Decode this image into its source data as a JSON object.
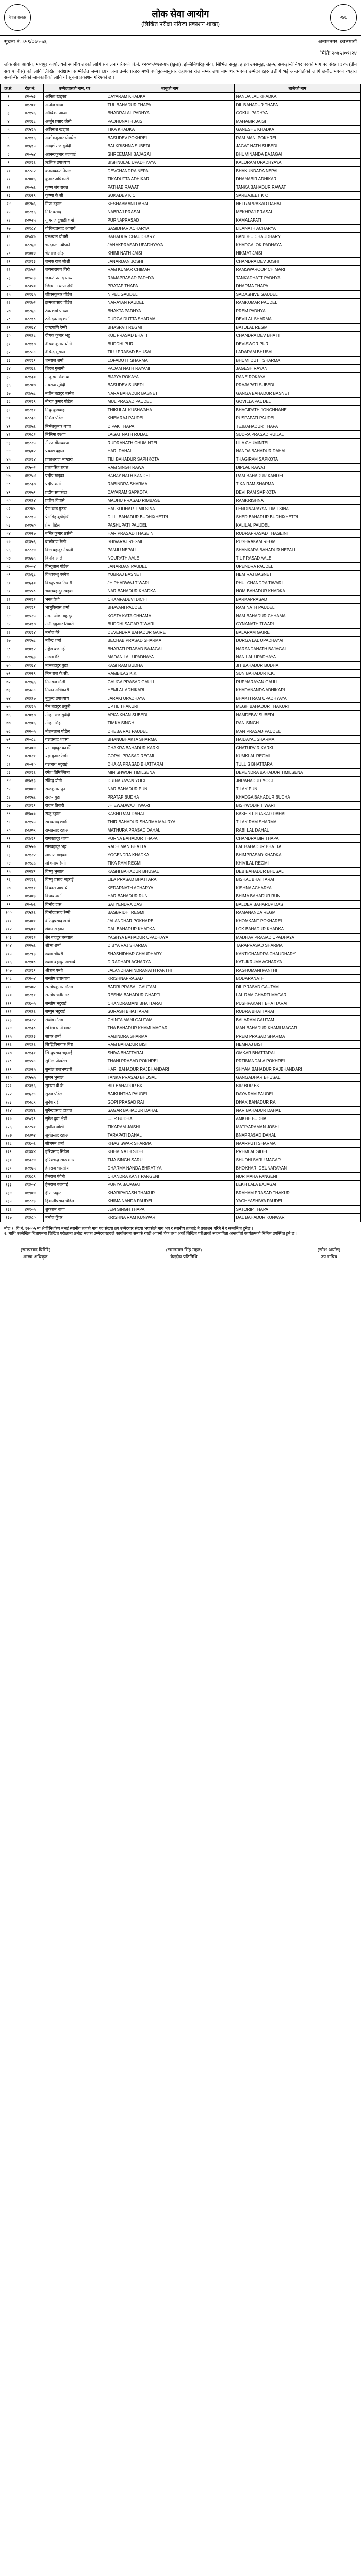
{
  "header": {
    "title": "लोक सेवा आयोग",
    "subtitle": "(लिखित परीक्षा नतिजा प्रकाशन शाखा)",
    "location": "अनामनगर, काठमाडौं",
    "emblem_left": "नेपाल सरकार",
    "emblem_right": "PSC"
  },
  "info": {
    "suchana_no_label": "सूचना नं.",
    "suchana_no": "८५९/०७५-७६",
    "date_label": "मितिः",
    "date": "२०७५।०९।२४"
  },
  "notice_text": "लोक सेवा आयोग, मध्यपुर कार्यालयले स्थानीय तहको लागि संचालन गरिएको वि.नं. १२००५/०७४-७५ (खुला), इन्जिनियरिङ्ग सेवा, सिभिल समूह, हाइवे उपसमूह, तह-५, सब-इन्जिनियर पदको माग पद संख्या ३२५ (तीन सय पच्चीस) को लागि लिखित परीक्षामा सम्मिलित जम्मा ६७९ जना उम्मेदवारहरु मध्ये वर्णानुक्रमानुसार देहायका रोल नम्बर तथा नाम थर भएका उम्मेदवारहरु उत्तीर्ण भई अन्तर्वार्ताको लागि छनौट भएको व्यहोरा सम्बन्धित सबैको जानकारीको लागि यो सूचना प्रकाशन गरिएको छ ।",
  "columns": [
    "क्र.सं.",
    "रोल नं.",
    "उम्मेदवारको नाम, थर",
    "बाबुको नाम",
    "बाजेको नाम"
  ],
  "rows": [
    [
      "१",
      "४२०५३",
      "अनिता खड्का",
      "DAYARAM KHADKA",
      "NANDA LAL KHADKA"
    ],
    [
      "२",
      "४१२०१",
      "अनोज थापा",
      "TUL BAHADUR THAPA",
      "DIL BAHADUR THAPA"
    ],
    [
      "३",
      "४२१५६",
      "अम्बिका पाध्या",
      "BHADRALAL PADHYA",
      "GOKUL PADHYA"
    ],
    [
      "४",
      "४२१६८",
      "अर्जुन प्रसाद जैसी",
      "PADHUNATH JAISI",
      "MAHABIR JAISI"
    ],
    [
      "५",
      "४१५९५",
      "अविनाश खड्का",
      "TIKA KHADKA",
      "GANESHE KHADKA"
    ],
    [
      "६",
      "४२११६",
      "अशोककुमार पोखरेल",
      "BASUDEV POKHREL",
      "RAM MANI POKHREL"
    ],
    [
      "७",
      "४१६१५",
      "आदर्श राज सुवेदी",
      "BALKRISHNA SUBEDI",
      "JAGAT NATH SUBEDI"
    ],
    [
      "८",
      "४२०५४",
      "आनन्दकुमार बजगाई",
      "SHREEMANI BAJAGAI",
      "BHUMINANDA BAJAGAI"
    ],
    [
      "९",
      "४२३१६",
      "ऋतिक उपाध्याय",
      "BISHNULAL UPADHYAYA",
      "KALURAM UPADHYAYA"
    ],
    [
      "१०",
      "४२२८२",
      "कमलकान्त नेपाल",
      "DEVCHANDRA NEPAL",
      "BHAKUNDADA NEPAL"
    ],
    [
      "११",
      "४२४४६",
      "कुमार अधिकारी",
      "TIKADUTTA ADHIKARI",
      "DHANABIR ADHIKARI"
    ],
    [
      "१२",
      "४२०५६",
      "कृष्ण जंग रावत",
      "PATHAB RAWAT",
      "TANKA BAHADUR RAWAT"
    ],
    [
      "१३",
      "४१६२९",
      "कृष्णा के सी",
      "SUKADEV K C",
      "SARBAJEET K C"
    ],
    [
      "१४",
      "४१२७६",
      "गिता दहाल",
      "KESHABMANI DAHAL",
      "NETRAPRASAD DAHAL"
    ],
    [
      "१५",
      "४१२१६",
      "गिरि प्रसाद",
      "NABRAJ PRASAI",
      "MEKHRAJ PRASAI"
    ],
    [
      "१६",
      "४२०२५",
      "गुणराज दुवाडी शर्मा",
      "PURNAPRASAD",
      "KAMALAPATI"
    ],
    [
      "१७",
      "४२१८४",
      "गोविन्दप्रसाद आचार्य",
      "SASIDHAR ACHARYA",
      "LILANATH ACHARYA"
    ],
    [
      "१८",
      "४२०४५",
      "घनश्याम चौधरी",
      "BAHADUR CHAUDHARY",
      "BANDHU CHAUDHARY"
    ],
    [
      "१९",
      "४२२६४",
      "चन्द्रकला न्यौपाने",
      "JANAKPRASAD UPADHYAYA",
      "KHADGALOK PADHAYA"
    ],
    [
      "२०",
      "४१७४४",
      "चेतराज ओझा",
      "KHIMI NATH JAISI",
      "HIKMAT JAISI"
    ],
    [
      "२१",
      "४१३१३",
      "जनक राज जोशी",
      "JANARDAN JOSHI",
      "CHANDRA DEV JOSHI"
    ],
    [
      "२२",
      "४१७५२",
      "जयनारायण गिरी",
      "RAM KUMAR CHIMARI",
      "RAMSWAROOP CHIMARI"
    ],
    [
      "२३",
      "४१५८३",
      "जयन्तीप्रसाद पाध्या",
      "RAMAPRASAD PADHYA",
      "TANKADHATT PADHYA"
    ],
    [
      "२४",
      "४२३५०",
      "जितमान थापा क्षेत्री",
      "PRATAP THAPA",
      "DHARMA THAPA"
    ],
    [
      "२५",
      "४२१६५",
      "जीवनकुमार गौडेल",
      "NIPEL GAUDEL",
      "SADASHIVE GAUDEL"
    ],
    [
      "२६",
      "४२१७२",
      "झमकप्रसाद पौडेल",
      "NARAYAN PAUDEL",
      "RAMKUMAR PAUDEL"
    ],
    [
      "२७",
      "४१२६९",
      "टंक शर्मा पाध्या",
      "BHAKTA PADHYA",
      "PREM PADHYA"
    ],
    [
      "२८",
      "४२२१८",
      "ठगेन्द्रप्रसाद शर्मा",
      "DURGA DUTTA SHARMA",
      "DEVILAL SHARMA"
    ],
    [
      "२९",
      "४१२६४",
      "दण्डपाणि रेग्मी",
      "BHASPATI REGMI",
      "BATULAL REGMI"
    ],
    [
      "३०",
      "४२२३८",
      "दीपक कुमार भट्ट",
      "KUL PRASAD BHATT",
      "CHANDRA DEV BHATT"
    ],
    [
      "३१",
      "४२११७",
      "दीपक कुमार योगी",
      "BUDDHI PURI",
      "DEVISWOR PURI"
    ],
    [
      "३२",
      "४१२८९",
      "दीपेन्द्र भुसाल",
      "TILU PRASAD BHUSAL",
      "LADARAM BHUSAL"
    ],
    [
      "३३",
      "४२१९१",
      "धनराज शर्मा",
      "LOFADUTT SHARMA",
      "BHUMI DUTT SHARMA"
    ],
    [
      "३४",
      "४२१६६",
      "धिरज गुलामी",
      "PADAM NATH RAYANI",
      "JAGESH RAYANI"
    ],
    [
      "३५",
      "४२१३०",
      "नन्दु राम रोकाया",
      "BIJAYA ROKAYA",
      "RANE ROKAYA"
    ],
    [
      "३६",
      "४१२४७",
      "नवराज सुवेदी",
      "BASUDEV SUBEDI",
      "PRAJAPATI SUBEDI"
    ],
    [
      "३७",
      "४१७५८",
      "नवीन बहादुर बस्नेत",
      "NARA BAHADUR BASNET",
      "GANGA BAHADUR BASNET"
    ],
    [
      "३८",
      "४१२१९",
      "नीरज कुमार पौडेल",
      "MUL PRASAD PAUDEL",
      "GOVILLA PAUDEL"
    ],
    [
      "३९",
      "४१२११",
      "निकु कुशवाहा",
      "THIKULAL KUSHWAHA",
      "BHAGIRATH JONCHHANE"
    ],
    [
      "४०",
      "४२२३९",
      "निर्मल पौडेल",
      "KHEMRAJ PAUDEL",
      "PUSPAPATI PAUDEL"
    ],
    [
      "४१",
      "४१४५६",
      "निर्मलकुमार थापा",
      "DIPAK THAPA",
      "TEJBAHADUR THAPA"
    ],
    [
      "४२",
      "४१२८२",
      "निलिमा रुक्षण",
      "LAGAT NATH RUIJAL",
      "SUDRA PRASAD RUIJAL"
    ],
    [
      "४३",
      "४१२२५",
      "नीरज गौलधवज",
      "RUDRANATH CHUMINTEL",
      "LILA CHUMINTEL"
    ],
    [
      "४४",
      "४१६०२",
      "प्रकाश दहाल",
      "HARI DAHAL",
      "NANDA BAHADUR DAHAL"
    ],
    [
      "४५",
      "४१३१४",
      "प्रकाशराज भण्डारी",
      "TILI BAHADUR SAPHKOTA",
      "THAGIRAM SAPKOTA"
    ],
    [
      "४६",
      "४१५०२",
      "प्रतापसिंह रावत",
      "RAM SINGH RAWAT",
      "DIPLAL RAWAT"
    ],
    [
      "४७",
      "४१२५४",
      "प्रदीप खड्का",
      "BABAY NATH KANDEL",
      "RAM BAHADUR KANDEL"
    ],
    [
      "४८",
      "४१२३७",
      "प्रदीप शर्मा",
      "RABINDRA SHARMA",
      "TIKA RAM SHARMA"
    ],
    [
      "४९",
      "४१२५१",
      "प्रदीप सपकोटा",
      "DAYARAM SAPKOTA",
      "DEVI RAM SAPKOTA"
    ],
    [
      "५०",
      "४१२३४",
      "प्रवीण विवासे",
      "MADHU PRASAD RIMBASE",
      "RAMKRISHNA"
    ],
    [
      "५१",
      "४२२४८",
      "प्रेम ब्लड गुरुङ",
      "HAUKUDHAR TIMILSINA",
      "LENDINARAYAN TIMILSINA"
    ],
    [
      "५२",
      "४२२१५",
      "प्रेमसिंह बुडीक्षेत्री",
      "DILLI BAHADUR BUDHIXHETRI",
      "SHER BAHADUR BUDHIXHETRI"
    ],
    [
      "५३",
      "४२१५०",
      "प्रेम पौडेल",
      "PASHUPATI PAUDEL",
      "KALILAL PAUDEL"
    ],
    [
      "५४",
      "४१२२७",
      "बसिर कुमार ठसैनी",
      "HARIPRASAD THASEINI",
      "RUDRAPRASAD THASEINI"
    ],
    [
      "५५",
      "४१३५६",
      "बालीराज रेग्मी",
      "SHIVARAJ REGMI",
      "PUSHRAKAM REGMI"
    ],
    [
      "५६",
      "४२२२४",
      "वित्त बहादुर नेपाली",
      "PANJU NEPALI",
      "SHANKARA BAHADUR NEPALI"
    ],
    [
      "५७",
      "४१६६९",
      "विनोद आले",
      "NOURATH AALE",
      "TIL PRASAD AALE"
    ],
    [
      "५८",
      "४२००४",
      "विन्दुलाल पौडेल",
      "JANARDAN PAUDEL",
      "UPENDRA PAUDEL"
    ],
    [
      "५९",
      "४१७६८",
      "विश्वबन्धु बस्नेत",
      "YUBRAJ BASNET",
      "HEM RAJ BASNET"
    ],
    [
      "६०",
      "४१६३०",
      "विष्णुप्रसाद तिवारी",
      "JHIPHADWAJ TIWARI",
      "PHULCHANDRA TIWARI"
    ],
    [
      "६१",
      "४१५५८",
      "भक्तबहादुर खड्का",
      "NAR BAHADUR KHADKA",
      "HOM BAHADUR KHADKA"
    ],
    [
      "६२",
      "४२२९२",
      "भरत वेशी",
      "CHAMPADEVI DICHI",
      "BARKAPRASAD"
    ],
    [
      "६३",
      "४२१९१",
      "भानुविलास शर्मा",
      "BHAVANI PAUDEL",
      "RAM NATH PAUDEL"
    ],
    [
      "६४",
      "४१५२५",
      "मदन ओछा बहादुर",
      "KOSTA KATA CHHAMA",
      "NAM BAHADUR CHHAMA"
    ],
    [
      "६५",
      "४१३१७",
      "मनीन्द्रकुमार तिवारी",
      "BUDDHI SAGAR TIWARI",
      "GYNANATH TIWARI"
    ],
    [
      "६६",
      "४१६१४",
      "मनोज गैरे",
      "DEVENDRA BAHADUR GAIRE",
      "BALARAM GAIRE"
    ],
    [
      "६७",
      "४२१५८",
      "महेन्द्र शर्मा",
      "BECHAB PRASAD SHARMA",
      "DURGA LAL UPADHAYAI"
    ],
    [
      "६८",
      "४१४१२",
      "महेश बजगाई",
      "BHARATI PRASAD BAJAGAI",
      "NARANDANATH BAJAGAI"
    ],
    [
      "६९",
      "४२१६३",
      "माधव गैरे",
      "MADAN LAL UPADHAYA",
      "NAN LAL UPADHAYA"
    ],
    [
      "७०",
      "४२१६४",
      "मानबहादुर बुढा",
      "KASI RAM BUDHA",
      "JIT BAHADUR BUDHA"
    ],
    [
      "७१",
      "४१२२९",
      "मिन राज के.सी.",
      "RAMBILAS K.K.",
      "SUN BAHADUR K.K."
    ],
    [
      "७२",
      "४२१६६",
      "मिनराज गौली",
      "GAUGA PRASAD GAULI",
      "RUPNARAYAN GAULI"
    ],
    [
      "७३",
      "४१३८९",
      "मिलन अधिकारी",
      "HEMLAL ADHIKARI",
      "KHADANANDA ADHIKARI"
    ],
    [
      "७४",
      "४२३३७",
      "मुकुन्द उपाध्याय",
      "JARAKI UPADHAYA",
      "BHAKTI RAM UPADHYAYA"
    ],
    [
      "७५",
      "४१६१५",
      "मेन बहादुर ठकुरी",
      "UPTIL THAKURI",
      "MEGH BAHADUR THAKURI"
    ],
    [
      "७६",
      "४२४१७",
      "मोहन राज सुवेदी",
      "APKA KHAN SUBEDI",
      "NAMDEBW SUBEDI"
    ],
    [
      "७७",
      "४२१०६",
      "मोहन सिंह",
      "TIMKA SINGH",
      "RAN SINGH"
    ],
    [
      "७८",
      "४२२०५",
      "मोहनलाल पौडेल",
      "DHEBA RAJ PAUDEL",
      "MAN PRASAD PAUDEL"
    ],
    [
      "७९",
      "४२०८८",
      "यज्ञप्रसाद शाक्य",
      "BHANUBHAKTA SHARMA",
      "HAIDAYAL SHARMA"
    ],
    [
      "८०",
      "४१३०४",
      "यम बहादुर कार्की",
      "CHAKRA BAHADUR KARKI",
      "CHATURVIR KARKI"
    ],
    [
      "८१",
      "४२०२१",
      "यज्ञ कुमार रेग्मी",
      "GOPAL PRASAD REGMI",
      "KUMKLAL REGMI"
    ],
    [
      "८२",
      "४२०२०",
      "यज्ञनाथ भट्टराई",
      "DHAKA PRASAD BHATTARAI",
      "TULLIS BHATTARAI"
    ],
    [
      "८३",
      "४२३१६",
      "रमेश तिमिल्सिना",
      "MINISHWOR TIMILSENA",
      "DEPENDRA BAHADUR TIMILSENA"
    ],
    [
      "८४",
      "४१७१३",
      "रविन्द्र योगी",
      "DRINARAYAN YOGI",
      "JNRAHADUR YOGI"
    ],
    [
      "८५",
      "४१४४४",
      "राजकुमार पुन",
      "NAR BAHADUR PUN",
      "TILAK PUN"
    ],
    [
      "८६",
      "४२१५६",
      "राजन बुढा",
      "PRATAP BUDHA",
      "KHADGA BAHADUR BUDHA"
    ],
    [
      "८७",
      "४१३९१",
      "राजन तिवारी",
      "JHIEWADWAJ TIWARI",
      "BISHWODIP TIWARI"
    ],
    [
      "८८",
      "४१७००",
      "राजु दहाल",
      "KASHI RAM DAHAL",
      "BASHIST PRASAD DAHAL"
    ],
    [
      "८९",
      "४२१५५",
      "रामप्रसाद शर्मा",
      "THIR BAHADUR SHARMA MAURYA",
      "TILAK RAM SHARMA"
    ],
    [
      "९०",
      "४२३०९",
      "रामप्रसाद दहाल",
      "MATHURA PRASAD DAHAL",
      "RABI LAL DAHAL"
    ],
    [
      "९१",
      "४१७११",
      "रामबहादुर थापा",
      "PURNA BAHADUR THAPA",
      "CHANDRA BIR THAPA"
    ],
    [
      "९२",
      "४१५५५",
      "रामबहादुर भट्ट",
      "RADHIMAN BHATTA",
      "LAL BAHADUR BHATTA"
    ],
    [
      "९३",
      "४२१२२",
      "लक्ष्मण खड्का",
      "YOGENDRA KHADKA",
      "BHIMPRASAD KHADKA"
    ],
    [
      "९४",
      "४२१८६",
      "लोकनाथ रेग्मी",
      "TIKA RAM REGMI",
      "KHIVILAL REGMI"
    ],
    [
      "९५",
      "४२२४१",
      "विष्णु भुसाल",
      "KASHI BAHADUR BHUSAL",
      "DEB BAHADUR BHUSAL"
    ],
    [
      "९६",
      "४२११६",
      "विष्णु प्रसाद भट्टराई",
      "LILA PRASAD BHATTARAI",
      "BISHAL BHATTARAI"
    ],
    [
      "९७",
      "४२१११",
      "विकास आचार्य",
      "KEDARNATH ACHARYA",
      "KISHNA ACHARYA"
    ],
    [
      "९८",
      "४१३४३",
      "विजय शर्मा",
      "HAR BAHADUR RUN",
      "BHIMA BAHADUR RUN"
    ],
    [
      "९९",
      "४२०७६",
      "विनोद दास",
      "SATYENDRA DAS",
      "BALDEV BAHARUP DAS"
    ],
    [
      "१००",
      "४१५३६",
      "विनोदप्रसाद रेग्मी",
      "BASBRIDHI REGMI",
      "RAMANANDA REGMI"
    ],
    [
      "१०१",
      "४१३४१",
      "वीरेन्द्रप्रसाद शर्मा",
      "JALANDHAR POKHAREL",
      "KHOMKANT POKHAREL"
    ],
    [
      "१०२",
      "४१६०१",
      "शंकर खड्का",
      "DAL BAHADUR KHADKA",
      "LOK BAHADUR KHADKA"
    ],
    [
      "१०३",
      "४१२१२",
      "शेर बहादुर बरुवाल",
      "YAGHYA BAHADUR UPADHAYA",
      "MADHAV PRASAD UPADHAYA"
    ],
    [
      "१०४",
      "४२२५६",
      "शोभा शर्मा",
      "DIBYA RAJ SHARMA",
      "TARAPRASAD SHARMA"
    ],
    [
      "१०५",
      "४१२९३",
      "श्याम चौधरी",
      "SHASHIDHAR CHAUDHARY",
      "KANTICHANDRA CHAUDHARY"
    ],
    [
      "१०६",
      "४२१०८",
      "श्याम बहादुर आचार्य",
      "DIRADHARI ACHARYA",
      "KATUKRUMA ACHARYA"
    ],
    [
      "१०७",
      "४१३९१",
      "श्रीराम पन्थी",
      "JALANDHARINDRANATH PANTHI",
      "RAGHUMANI PANTHI"
    ],
    [
      "१०८",
      "४१२०४",
      "सन्तोष उपाध्याय",
      "KRISHNAPRASAD",
      "BODARANATH"
    ],
    [
      "१०९",
      "४१५७२",
      "सन्तोषकुमार गौतम",
      "BADRI PRABAL GAUTAM",
      "DIL PRASAD GAUTAM"
    ],
    [
      "११०",
      "४१२११",
      "सन्तोष घर्तीमगर",
      "RESHM BAHADUR GHARTI",
      "LAL RAM GHARTI MAGAR"
    ],
    [
      "१११",
      "४१६०५",
      "सन्तोष भट्टराई",
      "CHANDRAMANI BHATTARAI",
      "PUSHPAKANT BHATTARAI"
    ],
    [
      "११२",
      "४१२३६",
      "सम्पुन भट्टराई",
      "SURASH BHATTARAI",
      "RUDRA BHATTARAI"
    ],
    [
      "११३",
      "४१३२२",
      "संयोग गौतम",
      "CHINTA MANI GAUTAM",
      "BALARAM GAUTAM"
    ],
    [
      "११४",
      "४२१३८",
      "सविता घानी मगर",
      "THA BAHADUR KHAMI MAGAR",
      "MAN BAHADUR KHAMI MAGAR"
    ],
    [
      "११५",
      "४१३३३",
      "सागर शर्मा",
      "RABINDRA SHARMA",
      "PREM PRASAD SHARMA"
    ],
    [
      "११६",
      "४२१३६",
      "सिद्धिविनायक बिष्ट",
      "RAM BAHADUR BIST",
      "HEMRAJ BIST"
    ],
    [
      "११७",
      "४२१३१",
      "सिन्धुप्रसाद भट्टराई",
      "SHIVA BHATTARAI",
      "OMKAR BHATTARAI"
    ],
    [
      "११८",
      "४१५५९",
      "सुनिल पोखरेल",
      "THANI PRASAD POKHREL",
      "PRTIMANDALA POKHREL"
    ],
    [
      "११९",
      "४१३२५",
      "सुनील राजभण्डारी",
      "HARI BAHADUR RAJBHANDARI",
      "SHYAM BAHADUR RAJBHANDARI"
    ],
    [
      "१२०",
      "४१५५५",
      "सुमन भुसाल",
      "TANKA PRASAD BHUSAL",
      "GANGADHAR BHUSAL"
    ],
    [
      "१२१",
      "४२३१६",
      "सुमरन बी के",
      "BIR BAHADUR BK",
      "BIR BDR BK"
    ],
    [
      "१२२",
      "४१६२९",
      "सुरज पौडेल",
      "BAIKUNTHA PAUDEL",
      "DAYA RAM PAUDEL"
    ],
    [
      "१२३",
      "४१२८९",
      "सुरेश राई",
      "GOPI PRASAD RAI",
      "DHAK BAHADUR RAI"
    ],
    [
      "१२४",
      "४१३४६",
      "सुरेन्द्रप्रसाद दाहाल",
      "SAGAR BAHADUR DAHAL",
      "NAR BAHADUR DAHAL"
    ],
    [
      "१२५",
      "४२०९९",
      "सुरेश बुढा क्षेत्री",
      "UJIR BUDHA",
      "AMKHE BUDHA"
    ],
    [
      "१२६",
      "४२२५१",
      "सुशील जोशी",
      "TIKARAM JAISHI",
      "MATIYARAMAN JOSHI"
    ],
    [
      "१२७",
      "४२३०४",
      "सूर्यप्रसाद दहाल",
      "TARAPATI DAHAL",
      "BNAPRASAD DAHAL"
    ],
    [
      "१२८",
      "४१६०६",
      "सोममन शर्मा",
      "KHAGISWAR SHARMA",
      "NAARPUTI SHARMA"
    ],
    [
      "१२९",
      "४१३४४",
      "हरिप्रसाद सिडेल",
      "KHEM NATH SIDEL",
      "PREMLAL SIDEL"
    ],
    [
      "१३०",
      "४१३२४",
      "हरिशचन्द्र सारु मगर",
      "TIJA SINGH SARU",
      "SHUDHI SARU MAGAR"
    ],
    [
      "१३१",
      "४२१६५",
      "हेमराज भारतीय",
      "DHARMA NANDA BHRATIYA",
      "BHOKHARI DEUNARAYAN"
    ],
    [
      "१३२",
      "४१६८९",
      "हेमराज पंगेनी",
      "CHANDRA KANT PANGENI",
      "NUR MAHA PANGENI"
    ],
    [
      "१३३",
      "४१३०४",
      "हेमराज बजगाई",
      "PUNYA BAJAGAI",
      "LEKH LALA BAJAGAI"
    ],
    [
      "१३४",
      "४१९४४",
      "हीरा ठाकुर",
      "KHARIPADASH THAKUR",
      "BRAHAM PRASAD THAKUR"
    ],
    [
      "१३५",
      "४१२२३",
      "हिमालीप्रसाद पौडेल",
      "KHIMA NANDA PAUDEL",
      "YAGHYASHIWA PAUDEL"
    ],
    [
      "१३६",
      "४२१०५",
      "शुकराम थापा",
      "JEM SINGH THAPA",
      "SATORIP THAPA"
    ],
    [
      "१३७",
      "४१३८०",
      "मनोज कुँवर",
      "KRISHNA RAM KUNWAR",
      "DAL BAHADUR KUNWAR"
    ]
  ],
  "footer_note": "नोटः १. वि.नं. १२००५ मा श्रेणीनिर्धारण नभई स्थानीय तहको माग पद संख्या ठप उम्मेदवार संख्या भएकोले माग भए र स्थानीय तहबाटे नै प्रकाशन गरिने नै र सम्बन्धित हुनेछ ।\n२. माथि उल्लेखित विज्ञापनमा लिखित परीक्षामा छनौट भएका उम्मेदवारहरुले कार्यालयमा सम्पर्क राखी आफ्नो चेक तथा अर्को लिखित परीक्षाको सहभागिता अन्तर्वार्ता कार्यक्रमको निमित्त उपस्थित हुने छ ।",
  "signatures": {
    "left": {
      "name": "(रामप्रसाद घिमिरे)",
      "title": "शाखा अधिकृत"
    },
    "center": {
      "name": "(टामनमान सिंह महत)",
      "title": "केन्द्रीय प्रतिनिधि"
    },
    "right": {
      "name": "(रमेश अर्याल)",
      "title": "उप सचिव"
    }
  },
  "colors": {
    "border": "#000000",
    "bg": "#ffffff",
    "header_bg": "#f0f0f0"
  }
}
